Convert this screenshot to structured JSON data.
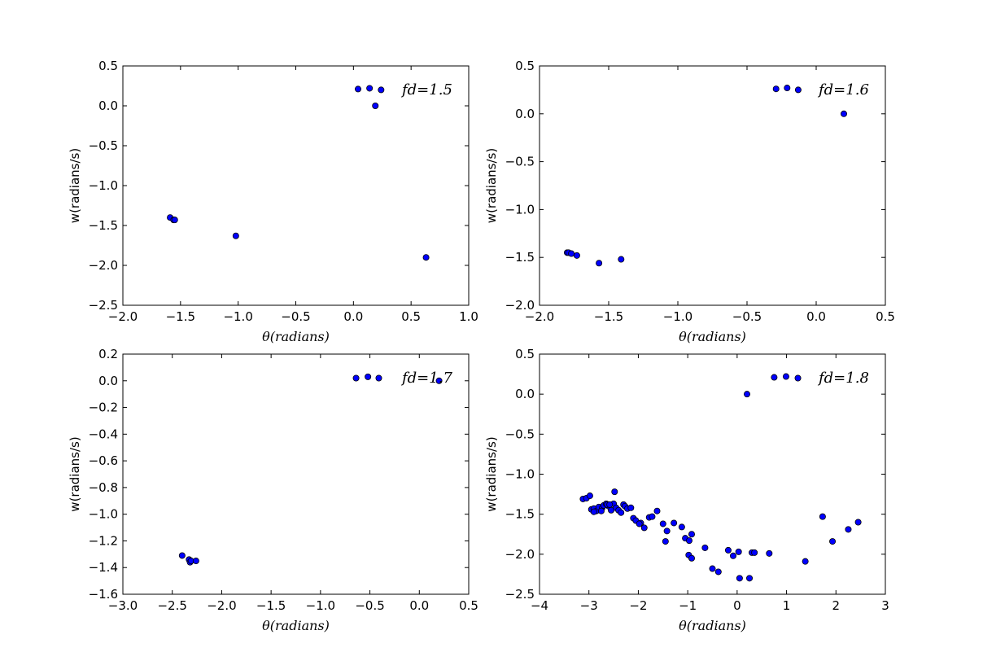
{
  "colors": {
    "marker": "#0000ff",
    "edge": "#000000",
    "background": "#ffffff"
  },
  "chart_data": [
    {
      "type": "scatter",
      "legend": "fd=1.5",
      "legend_placement": "top-right",
      "xlabel": "θ(radians)",
      "ylabel": "w(radians/s)",
      "xlim": [
        -2.0,
        1.0
      ],
      "ylim": [
        -2.5,
        0.5
      ],
      "xticks": [
        "−2.0",
        "−1.5",
        "−1.0",
        "−0.5",
        "0.0",
        "0.5",
        "1.0"
      ],
      "yticks": [
        "−2.5",
        "−2.0",
        "−1.5",
        "−1.0",
        "−0.5",
        "0.0",
        "0.5"
      ],
      "grid": false,
      "points": [
        [
          0.04,
          0.21
        ],
        [
          0.14,
          0.22
        ],
        [
          0.24,
          0.2
        ],
        [
          0.19,
          0.0
        ],
        [
          -1.59,
          -1.4
        ],
        [
          -1.56,
          -1.43
        ],
        [
          -1.55,
          -1.43
        ],
        [
          -1.02,
          -1.63
        ],
        [
          0.63,
          -1.9
        ]
      ]
    },
    {
      "type": "scatter",
      "legend": "fd=1.6",
      "legend_placement": "top-right",
      "xlabel": "θ(radians)",
      "ylabel": "w(radians/s)",
      "xlim": [
        -2.0,
        0.5
      ],
      "ylim": [
        -2.0,
        0.5
      ],
      "xticks": [
        "−2.0",
        "−1.5",
        "−1.0",
        "−0.5",
        "0.0",
        "0.5"
      ],
      "yticks": [
        "−2.0",
        "−1.5",
        "−1.0",
        "−0.5",
        "0.0",
        "0.5"
      ],
      "grid": false,
      "points": [
        [
          -0.29,
          0.26
        ],
        [
          -0.21,
          0.27
        ],
        [
          -0.13,
          0.25
        ],
        [
          0.2,
          0.0
        ],
        [
          -1.8,
          -1.45
        ],
        [
          -1.79,
          -1.45
        ],
        [
          -1.77,
          -1.46
        ],
        [
          -1.73,
          -1.48
        ],
        [
          -1.57,
          -1.56
        ],
        [
          -1.41,
          -1.52
        ]
      ]
    },
    {
      "type": "scatter",
      "legend": "fd=1.7",
      "legend_placement": "top-right",
      "xlabel": "θ(radians)",
      "ylabel": "w(radians/s)",
      "xlim": [
        -3.0,
        0.5
      ],
      "ylim": [
        -1.6,
        0.2
      ],
      "xticks": [
        "−3.0",
        "−2.5",
        "−2.0",
        "−1.5",
        "−1.0",
        "−0.5",
        "0.0",
        "0.5"
      ],
      "yticks": [
        "−1.6",
        "−1.4",
        "−1.2",
        "−1.0",
        "−0.8",
        "−0.6",
        "−0.4",
        "−0.2",
        "0.0",
        "0.2"
      ],
      "grid": false,
      "points": [
        [
          -0.64,
          0.02
        ],
        [
          -0.52,
          0.03
        ],
        [
          -0.41,
          0.02
        ],
        [
          0.2,
          0.0
        ],
        [
          -2.4,
          -1.31
        ],
        [
          -2.33,
          -1.34
        ],
        [
          -2.32,
          -1.36
        ],
        [
          -2.31,
          -1.35
        ],
        [
          -2.26,
          -1.35
        ]
      ]
    },
    {
      "type": "scatter",
      "legend": "fd=1.8",
      "legend_placement": "top-right",
      "xlabel": "θ(radians)",
      "ylabel": "w(radians/s)",
      "xlim": [
        -4,
        3
      ],
      "ylim": [
        -2.5,
        0.5
      ],
      "xticks": [
        "−4",
        "−3",
        "−2",
        "−1",
        "0",
        "1",
        "2",
        "3"
      ],
      "yticks": [
        "−2.5",
        "−2.0",
        "−1.5",
        "−1.0",
        "−0.5",
        "0.0",
        "0.5"
      ],
      "grid": false,
      "points": [
        [
          0.75,
          0.21
        ],
        [
          0.99,
          0.22
        ],
        [
          1.23,
          0.2
        ],
        [
          0.2,
          0.0
        ],
        [
          -3.12,
          -1.31
        ],
        [
          -3.05,
          -1.3
        ],
        [
          -2.98,
          -1.27
        ],
        [
          -2.95,
          -1.44
        ],
        [
          -2.9,
          -1.43
        ],
        [
          -2.85,
          -1.46
        ],
        [
          -2.8,
          -1.41
        ],
        [
          -2.73,
          -1.42
        ],
        [
          -2.7,
          -1.39
        ],
        [
          -2.65,
          -1.37
        ],
        [
          -2.6,
          -1.4
        ],
        [
          -2.55,
          -1.45
        ],
        [
          -2.5,
          -1.37
        ],
        [
          -2.48,
          -1.22
        ],
        [
          -2.45,
          -1.42
        ],
        [
          -2.4,
          -1.45
        ],
        [
          -2.35,
          -1.48
        ],
        [
          -2.3,
          -1.38
        ],
        [
          -2.27,
          -1.4
        ],
        [
          -2.22,
          -1.43
        ],
        [
          -2.15,
          -1.42
        ],
        [
          -2.1,
          -1.55
        ],
        [
          -2.05,
          -1.58
        ],
        [
          -1.95,
          -1.61
        ],
        [
          -1.88,
          -1.67
        ],
        [
          -1.78,
          -1.54
        ],
        [
          -1.72,
          -1.53
        ],
        [
          -1.62,
          -1.46
        ],
        [
          -1.5,
          -1.62
        ],
        [
          -1.42,
          -1.71
        ],
        [
          -1.28,
          -1.61
        ],
        [
          -1.12,
          -1.66
        ],
        [
          -1.05,
          -1.8
        ],
        [
          -0.97,
          -1.83
        ],
        [
          -0.92,
          -1.75
        ],
        [
          -0.98,
          -2.01
        ],
        [
          -0.92,
          -2.05
        ],
        [
          -0.65,
          -1.92
        ],
        [
          -0.5,
          -2.18
        ],
        [
          -0.38,
          -2.22
        ],
        [
          -0.18,
          -1.95
        ],
        [
          -0.08,
          -2.02
        ],
        [
          0.03,
          -1.97
        ],
        [
          0.05,
          -2.3
        ],
        [
          0.25,
          -2.3
        ],
        [
          0.3,
          -1.98
        ],
        [
          0.35,
          -1.98
        ],
        [
          0.65,
          -1.99
        ],
        [
          1.38,
          -2.09
        ],
        [
          1.73,
          -1.53
        ],
        [
          1.93,
          -1.84
        ],
        [
          2.25,
          -1.69
        ],
        [
          2.45,
          -1.6
        ],
        [
          -1.45,
          -1.84
        ],
        [
          -2.63,
          -1.38
        ],
        [
          -2.9,
          -1.47
        ],
        [
          -2.75,
          -1.46
        ],
        [
          -2.58,
          -1.38
        ],
        [
          -1.98,
          -1.62
        ]
      ]
    }
  ]
}
